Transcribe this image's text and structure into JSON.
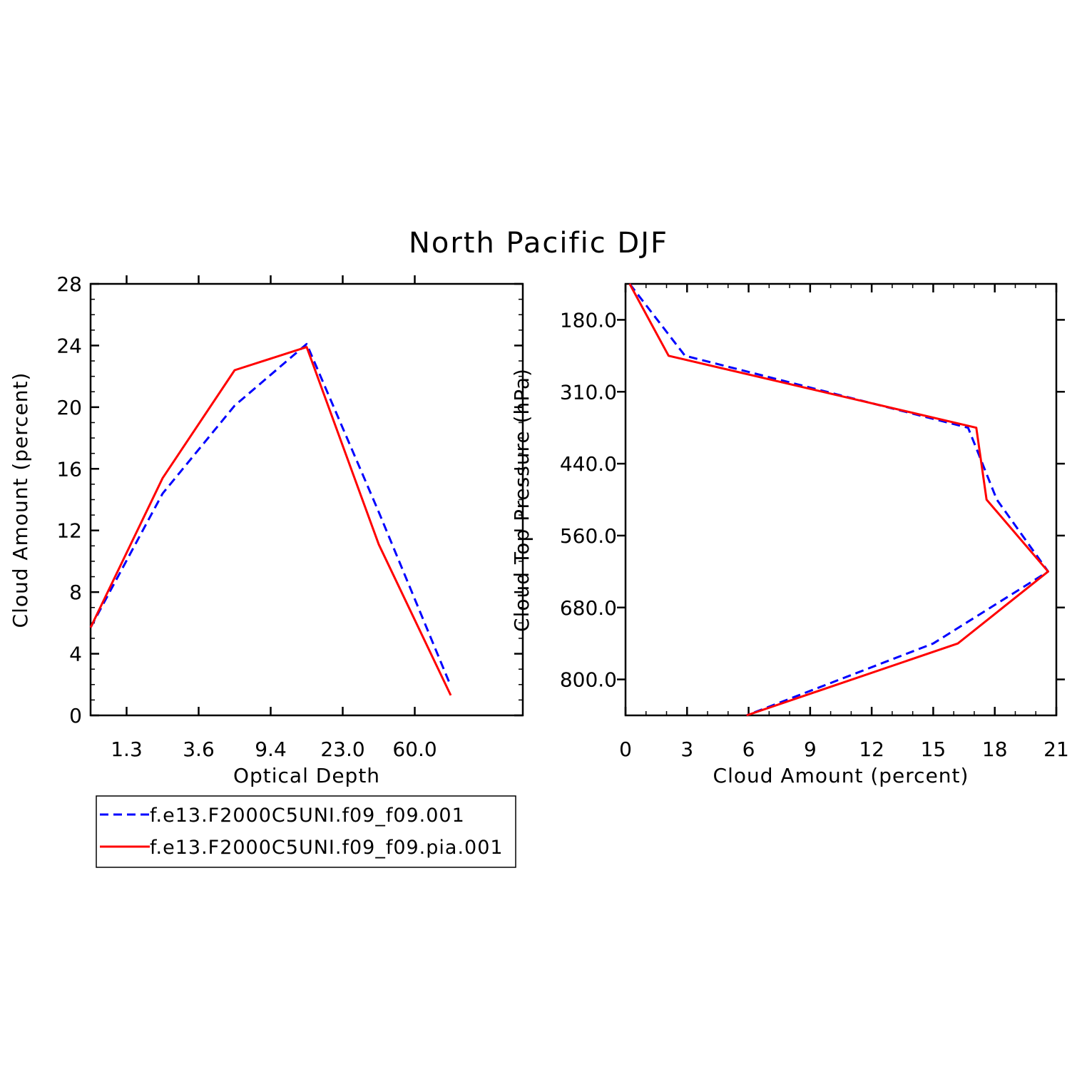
{
  "title": "North Pacific DJF",
  "colors": {
    "series_1": "#0000ff",
    "series_2": "#ff0000",
    "axis": "#000000"
  },
  "legend": {
    "placement": "below-left",
    "entries": [
      {
        "label": "f.e13.F2000C5UNI.f09_f09.001",
        "color": "#0000ff",
        "dash": true
      },
      {
        "label": "f.e13.F2000C5UNI.f09_f09.pia.001",
        "color": "#ff0000",
        "dash": false
      }
    ]
  },
  "chart_data": [
    {
      "type": "line",
      "xlabel": "Optical Depth",
      "ylabel": "Cloud Amount (percent)",
      "x_bin_labels": [
        "1.3",
        "3.6",
        "9.4",
        "23.0",
        "60.0"
      ],
      "y_ticks": [
        "0",
        "4",
        "8",
        "12",
        "16",
        "20",
        "24",
        "28"
      ],
      "ylim": [
        0,
        28
      ],
      "x_index_range": [
        0,
        6
      ],
      "x": [
        0,
        1,
        2,
        3,
        4,
        5
      ],
      "series": [
        {
          "name": "f.e13.F2000C5UNI.f09_f09.001",
          "values": [
            5.7,
            14.4,
            20.1,
            24.1,
            13.2,
            1.9
          ]
        },
        {
          "name": "f.e13.F2000C5UNI.f09_f09.pia.001",
          "values": [
            5.7,
            15.4,
            22.4,
            23.9,
            11.1,
            1.3
          ]
        }
      ]
    },
    {
      "type": "line",
      "orientation": "horizontal",
      "xlabel": "Cloud Amount (percent)",
      "ylabel": "Cloud Top Pressure (hPa)",
      "x_ticks": [
        "0",
        "3",
        "6",
        "9",
        "12",
        "15",
        "18",
        "21"
      ],
      "xlim": [
        0,
        21
      ],
      "y_ticks": [
        "180.0",
        "310.0",
        "440.0",
        "560.0",
        "680.0",
        "800.0"
      ],
      "y_index_range": [
        0,
        6
      ],
      "series": [
        {
          "name": "f.e13.F2000C5UNI.f09_f09.001",
          "x": [
            0.2,
            2.9,
            16.7,
            18.1,
            20.6,
            15.0,
            5.9
          ],
          "y": [
            0,
            1,
            2,
            3,
            4,
            5,
            6
          ]
        },
        {
          "name": "f.e13.F2000C5UNI.f09_f09.pia.001",
          "x": [
            0.2,
            2.1,
            17.1,
            17.6,
            20.6,
            16.2,
            5.9
          ],
          "y": [
            0,
            1,
            2,
            3,
            4,
            5,
            6
          ]
        }
      ]
    }
  ]
}
